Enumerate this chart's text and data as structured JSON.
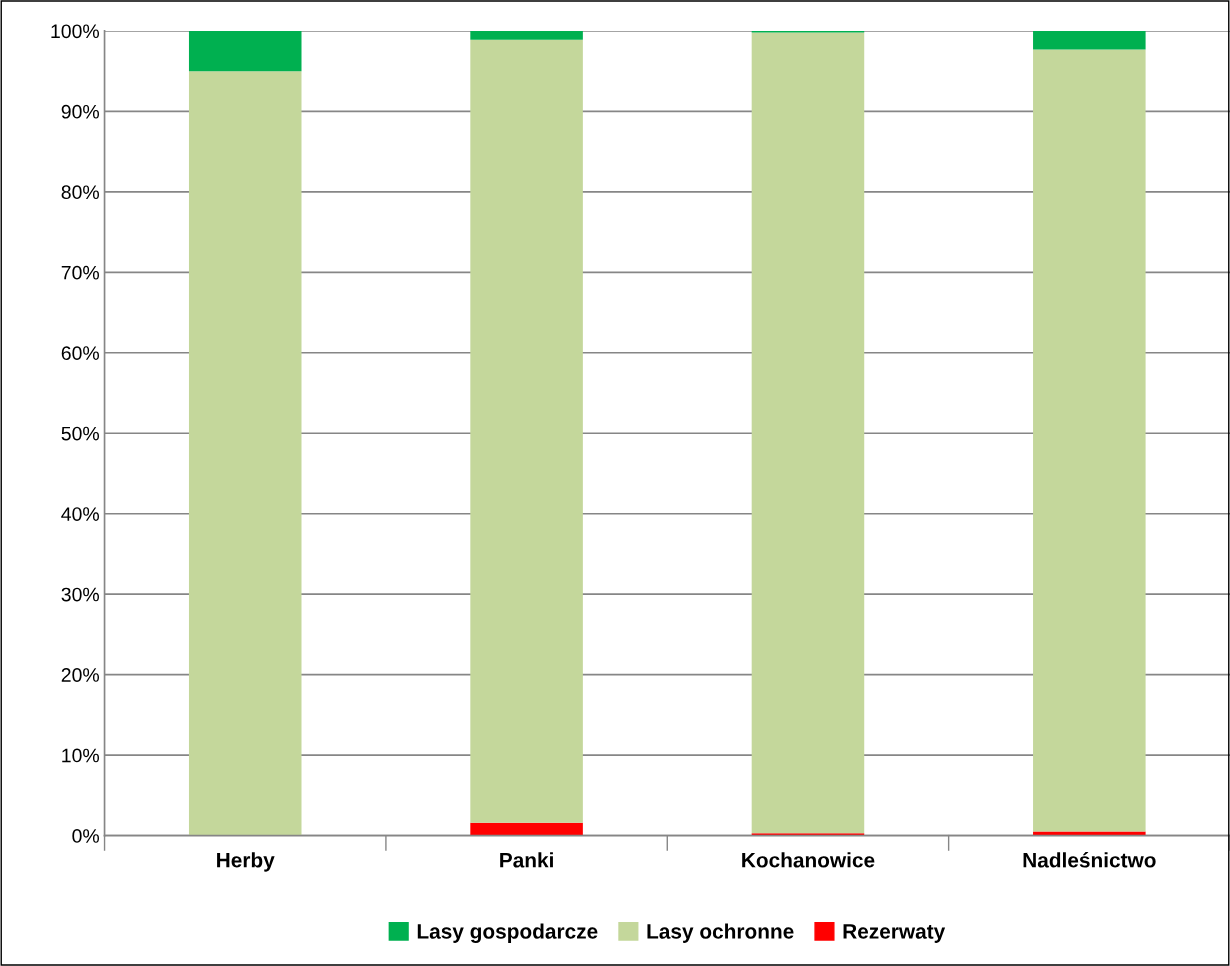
{
  "chart_data": {
    "type": "bar",
    "stacked": true,
    "categories": [
      "Herby",
      "Panki",
      "Kochanowice",
      "Nadleśnictwo"
    ],
    "series": [
      {
        "name": "Rezerwaty",
        "color": "#ff0000",
        "values": [
          0,
          1.6,
          0.3,
          0.5
        ]
      },
      {
        "name": "Lasy ochronne",
        "color": "#c4d79b",
        "values": [
          95,
          97.3,
          99.5,
          97.2
        ]
      },
      {
        "name": "Lasy gospodarcze",
        "color": "#00b050",
        "values": [
          5,
          1.1,
          0.2,
          2.3
        ]
      }
    ],
    "ylim": [
      0,
      100
    ],
    "yticks": [
      {
        "value": 0,
        "label": "0%"
      },
      {
        "value": 10,
        "label": "10%"
      },
      {
        "value": 20,
        "label": "20%"
      },
      {
        "value": 30,
        "label": "30%"
      },
      {
        "value": 40,
        "label": "40%"
      },
      {
        "value": 50,
        "label": "50%"
      },
      {
        "value": 60,
        "label": "60%"
      },
      {
        "value": 70,
        "label": "70%"
      },
      {
        "value": 80,
        "label": "80%"
      },
      {
        "value": 90,
        "label": "90%"
      },
      {
        "value": 100,
        "label": "100%"
      }
    ],
    "grid": "y",
    "legend": "bottom"
  }
}
